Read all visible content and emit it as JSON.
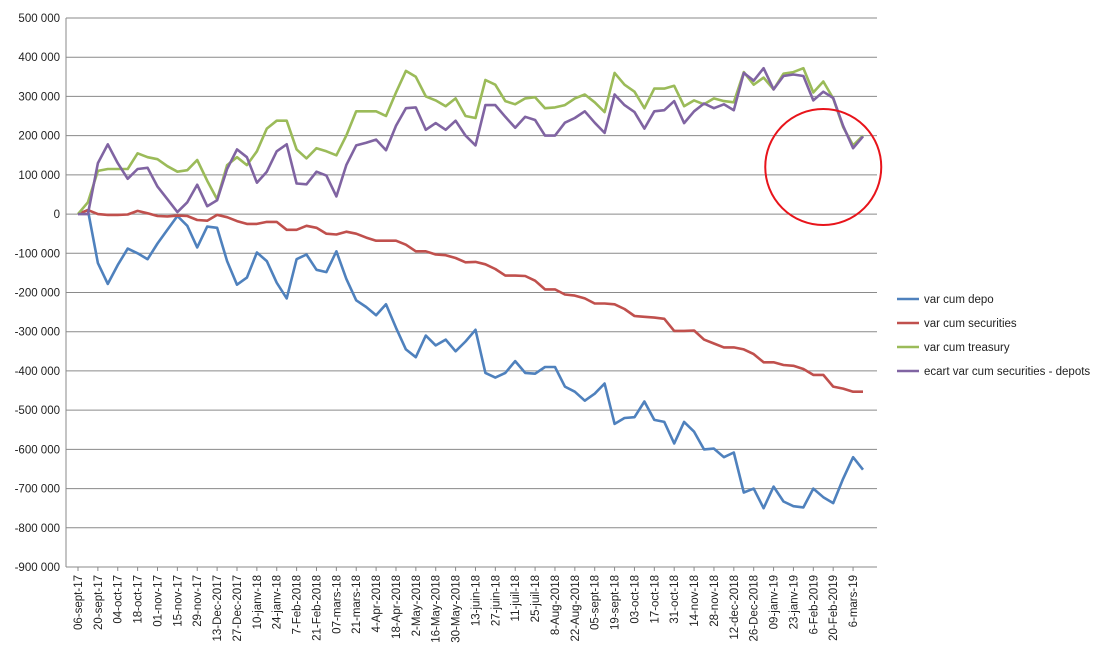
{
  "chart_data": {
    "type": "line",
    "title": "",
    "xlabel": "",
    "ylabel": "",
    "ylim": [
      -900000,
      500000
    ],
    "ytick_step": 100000,
    "grid": "horizontal",
    "legend_position": "right",
    "y_tick_labels": [
      "500 000",
      "400 000",
      "300 000",
      "200 000",
      "100 000",
      "0",
      "-100 000",
      "-200 000",
      "-300 000",
      "-400 000",
      "-500 000",
      "-600 000",
      "-700 000",
      "-800 000",
      "-900 000"
    ],
    "x_tick_labels": [
      "06-sept-17",
      "20-sept-17",
      "04-oct-17",
      "18-oct-17",
      "01-nov-17",
      "15-nov-17",
      "29-nov-17",
      "13-Dec-2017",
      "27-Dec-2017",
      "10-janv-18",
      "24-janv-18",
      "7-Feb-2018",
      "21-Feb-2018",
      "07-mars-18",
      "21-mars-18",
      "4-Apr-2018",
      "18-Apr-2018",
      "2-May-2018",
      "16-May-2018",
      "30-May-2018",
      "13-juin-18",
      "27-juin-18",
      "11-juil-18",
      "25-juil-18",
      "8-Aug-2018",
      "22-Aug-2018",
      "05-sept-18",
      "19-sept-18",
      "03-oct-18",
      "17-oct-18",
      "31-oct-18",
      "14-nov-18",
      "28-nov-18",
      "12-dec-2018",
      "26-Dec-2018",
      "09-janv-19",
      "23-janv-19",
      "6-Feb-2019",
      "20-Feb-2019",
      "6-mars-19"
    ],
    "points_per_label": 2,
    "series": [
      {
        "name": "var cum depo",
        "color": "#4F81BD",
        "values": [
          0,
          10000,
          -125000,
          -178000,
          -130000,
          -88000,
          -100000,
          -115000,
          -75000,
          -40000,
          -5000,
          -30000,
          -85000,
          -32000,
          -35000,
          -120000,
          -180000,
          -162000,
          -98000,
          -120000,
          -175000,
          -215000,
          -115000,
          -103000,
          -142000,
          -148000,
          -95000,
          -165000,
          -220000,
          -237000,
          -258000,
          -230000,
          -290000,
          -345000,
          -365000,
          -310000,
          -335000,
          -320000,
          -350000,
          -325000,
          -295000,
          -405000,
          -417000,
          -405000,
          -375000,
          -405000,
          -407000,
          -390000,
          -390000,
          -440000,
          -453000,
          -476000,
          -458000,
          -432000,
          -535000,
          -520000,
          -518000,
          -478000,
          -525000,
          -530000,
          -585000,
          -530000,
          -555000,
          -600000,
          -598000,
          -620000,
          -608000,
          -710000,
          -700000,
          -750000,
          -695000,
          -733000,
          -745000,
          -748000,
          -700000,
          -722000,
          -737000,
          -675000,
          -620000,
          -652000
        ]
      },
      {
        "name": "var cum securities",
        "color": "#C0504D",
        "values": [
          0,
          10000,
          0,
          -2000,
          -2000,
          -1000,
          8000,
          2000,
          -5000,
          -6000,
          -4000,
          -5000,
          -15000,
          -17000,
          -2000,
          -8000,
          -18000,
          -25000,
          -25000,
          -20000,
          -20000,
          -40000,
          -40000,
          -30000,
          -35000,
          -50000,
          -52000,
          -45000,
          -50000,
          -60000,
          -68000,
          -68000,
          -68000,
          -78000,
          -95000,
          -95000,
          -103000,
          -105000,
          -112000,
          -123000,
          -122000,
          -128000,
          -140000,
          -157000,
          -157000,
          -158000,
          -170000,
          -192000,
          -192000,
          -205000,
          -208000,
          -215000,
          -228000,
          -228000,
          -230000,
          -242000,
          -260000,
          -262000,
          -264000,
          -267000,
          -298000,
          -298000,
          -297000,
          -320000,
          -330000,
          -340000,
          -340000,
          -345000,
          -357000,
          -378000,
          -378000,
          -385000,
          -387000,
          -395000,
          -410000,
          -410000,
          -440000,
          -445000,
          -453000,
          -453000
        ]
      },
      {
        "name": "var cum treasury",
        "color": "#9BBB59",
        "values": [
          0,
          30000,
          110000,
          115000,
          115000,
          115000,
          155000,
          145000,
          140000,
          122000,
          108000,
          112000,
          138000,
          85000,
          38000,
          125000,
          145000,
          125000,
          160000,
          218000,
          238000,
          238000,
          165000,
          142000,
          168000,
          160000,
          150000,
          200000,
          262000,
          262000,
          262000,
          250000,
          310000,
          365000,
          350000,
          300000,
          290000,
          275000,
          295000,
          250000,
          245000,
          342000,
          330000,
          288000,
          280000,
          295000,
          298000,
          270000,
          272000,
          278000,
          295000,
          305000,
          285000,
          260000,
          360000,
          330000,
          312000,
          270000,
          320000,
          320000,
          327000,
          275000,
          290000,
          280000,
          295000,
          288000,
          285000,
          362000,
          330000,
          348000,
          318000,
          358000,
          362000,
          372000,
          310000,
          338000,
          295000,
          222000,
          175000,
          200000
        ]
      },
      {
        "name": "ecart var cum securities - depots",
        "color": "#8064A2",
        "values": [
          0,
          0,
          130000,
          178000,
          130000,
          90000,
          115000,
          118000,
          70000,
          38000,
          5000,
          30000,
          75000,
          20000,
          35000,
          115000,
          165000,
          145000,
          80000,
          108000,
          160000,
          178000,
          78000,
          76000,
          108000,
          98000,
          45000,
          125000,
          175000,
          182000,
          190000,
          163000,
          225000,
          270000,
          272000,
          215000,
          232000,
          215000,
          238000,
          200000,
          175000,
          278000,
          278000,
          248000,
          220000,
          248000,
          240000,
          200000,
          200000,
          233000,
          245000,
          262000,
          233000,
          207000,
          305000,
          278000,
          260000,
          218000,
          262000,
          265000,
          288000,
          232000,
          262000,
          282000,
          270000,
          280000,
          265000,
          360000,
          340000,
          372000,
          318000,
          352000,
          356000,
          352000,
          290000,
          312000,
          296000,
          225000,
          168000,
          198000
        ]
      }
    ],
    "annotation": {
      "shape": "circle",
      "color": "#E8141B",
      "center_index": 75,
      "center_value": 120000
    }
  }
}
